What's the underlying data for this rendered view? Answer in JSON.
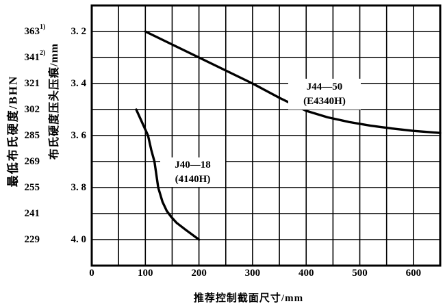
{
  "figure": {
    "background": "#ffffff",
    "ink": "#000000"
  },
  "chart_data": {
    "type": "line",
    "title": "",
    "xlabel": "推荐控制截面尺寸/mm",
    "ylabel_left": "最低布氏硬度/BHN",
    "ylabel_right": "布氏硬度压头压痕/mm",
    "xlim": [
      0,
      650
    ],
    "ylim": [
      3.1,
      4.1
    ],
    "y_axis_inverted": true,
    "grid": {
      "show": true,
      "x_step": 50,
      "y_step": 0.1
    },
    "legend_position": "inline-labels",
    "x_ticks": [
      {
        "label": "0",
        "x": 0
      },
      {
        "label": "100",
        "x": 100
      },
      {
        "label": "200",
        "x": 200
      },
      {
        "label": "300",
        "x": 300
      },
      {
        "label": "400",
        "x": 400
      },
      {
        "label": "500",
        "x": 500
      },
      {
        "label": "600",
        "x": 600
      }
    ],
    "y_ticks_mm": [
      {
        "label": "3. 2",
        "y": 3.2
      },
      {
        "label": "3. 4",
        "y": 3.4
      },
      {
        "label": "3. 6",
        "y": 3.6
      },
      {
        "label": "3. 8",
        "y": 3.8
      },
      {
        "label": "4. 0",
        "y": 4.0
      }
    ],
    "y_ticks_bhn": [
      {
        "label": "363",
        "sup": "1)",
        "y": 3.2
      },
      {
        "label": "341",
        "sup": "2)",
        "y": 3.3
      },
      {
        "label": "321",
        "sup": "",
        "y": 3.4
      },
      {
        "label": "302",
        "sup": "",
        "y": 3.5
      },
      {
        "label": "285",
        "sup": "",
        "y": 3.6
      },
      {
        "label": "269",
        "sup": "",
        "y": 3.7
      },
      {
        "label": "255",
        "sup": "",
        "y": 3.8
      },
      {
        "label": "241",
        "sup": "",
        "y": 3.9
      },
      {
        "label": "229",
        "sup": "",
        "y": 4.0
      }
    ],
    "series": [
      {
        "name": "J44-50 (E4340H)",
        "label_line1": "J44—50",
        "label_line2": "(E4340H)",
        "points": [
          [
            100,
            3.2
          ],
          [
            150,
            3.25
          ],
          [
            200,
            3.3
          ],
          [
            250,
            3.35
          ],
          [
            300,
            3.4
          ],
          [
            350,
            3.455
          ],
          [
            400,
            3.505
          ],
          [
            440,
            3.53
          ],
          [
            480,
            3.548
          ],
          [
            520,
            3.562
          ],
          [
            560,
            3.573
          ],
          [
            600,
            3.582
          ],
          [
            650,
            3.59
          ]
        ]
      },
      {
        "name": "J40-18 (4140H)",
        "label_line1": "J40—18",
        "label_line2": "(4140H)",
        "points": [
          [
            83,
            3.5
          ],
          [
            105,
            3.6
          ],
          [
            111,
            3.655
          ],
          [
            117,
            3.7
          ],
          [
            124,
            3.8
          ],
          [
            132,
            3.855
          ],
          [
            140,
            3.89
          ],
          [
            148,
            3.912
          ],
          [
            158,
            3.935
          ],
          [
            175,
            3.962
          ],
          [
            200,
            4.0
          ]
        ]
      }
    ],
    "line_color": "#000000",
    "grid_color": "#000000",
    "border_color": "#000000"
  }
}
